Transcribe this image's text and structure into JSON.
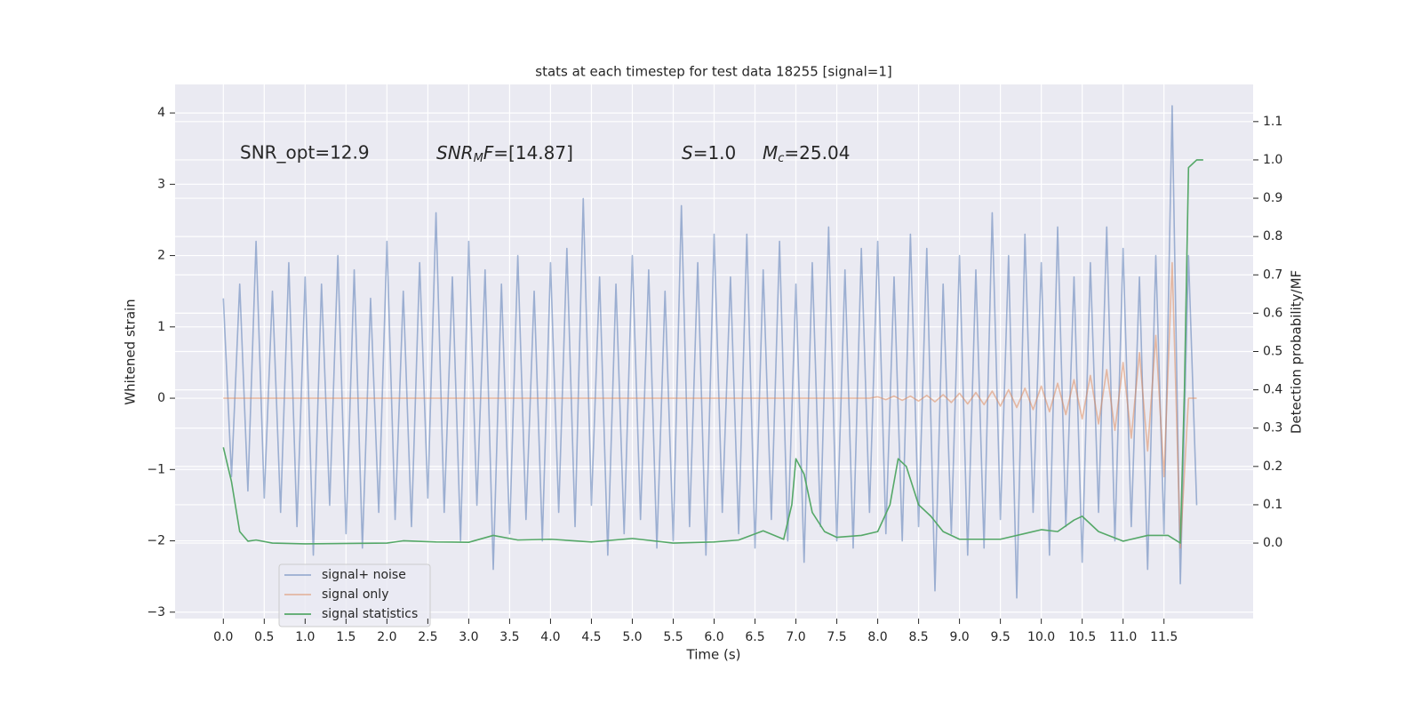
{
  "chart_data": {
    "type": "line",
    "title": "stats at each timestep for test data 18255 [signal=1]",
    "xlabel": "Time (s)",
    "ylabel": "Whitened strain",
    "y2label": "Detection probability/MF",
    "annotations": [
      [
        "SNR_opt=12.9"
      ],
      [
        "SNR",
        "M",
        "F",
        "=[14.87]"
      ],
      [
        "S",
        "=1.0"
      ],
      [
        "M",
        "c",
        "=25.04"
      ]
    ],
    "grid": true,
    "legend": "lower left",
    "xlim": [
      -0.59,
      12.59
    ],
    "ylim": [
      -3.09,
      4.4
    ],
    "y2lim": [
      -0.197,
      1.197
    ],
    "xticks": [
      {
        "value": 0,
        "label": "0.0"
      },
      0.5,
      {
        "value": 1,
        "label": "1.0"
      },
      1.5,
      {
        "value": 2,
        "label": "2.0"
      },
      2.5,
      {
        "value": 3,
        "label": "3.0"
      },
      3.5,
      {
        "value": 4,
        "label": "4.0"
      },
      4.5,
      {
        "value": 5,
        "label": "5.0"
      },
      5.5,
      {
        "value": 6,
        "label": "6.0"
      },
      6.5,
      {
        "value": 7,
        "label": "7.0"
      },
      7.5,
      {
        "value": 8,
        "label": "8.0"
      },
      8.5,
      {
        "value": 9,
        "label": "9.0"
      },
      9.5,
      {
        "value": 10,
        "label": "10.0"
      },
      10.5,
      {
        "value": 11,
        "label": "11.0"
      },
      11.5
    ],
    "yticks": [
      {
        "value": -3,
        "label": "−3"
      },
      {
        "value": -2,
        "label": "−2"
      },
      {
        "value": -1,
        "label": "−1"
      },
      0,
      1,
      2,
      3,
      4
    ],
    "y2ticks": [
      {
        "value": 0,
        "label": "0.0"
      },
      0.1,
      0.2,
      0.3,
      0.4,
      0.5,
      0.6,
      0.7,
      0.8,
      0.9,
      {
        "value": 1,
        "label": "1.0"
      },
      1.1
    ],
    "x": [
      0,
      0.1,
      0.2,
      0.3,
      0.4,
      0.5,
      0.6,
      0.7,
      0.8,
      0.9,
      1,
      1.1,
      1.2,
      1.3,
      1.4,
      1.5,
      1.6,
      1.7,
      1.8,
      1.9,
      2,
      2.1,
      2.2,
      2.3,
      2.4,
      2.5,
      2.6,
      2.7,
      2.8,
      2.9,
      3,
      3.1,
      3.2,
      3.3,
      3.4,
      3.5,
      3.6,
      3.7,
      3.8,
      3.9,
      4,
      4.1,
      4.2,
      4.3,
      4.4,
      4.5,
      4.6,
      4.7,
      4.8,
      4.9,
      5,
      5.1,
      5.2,
      5.3,
      5.4,
      5.5,
      5.6,
      5.7,
      5.8,
      5.9,
      6,
      6.1,
      6.2,
      6.3,
      6.4,
      6.5,
      6.6,
      6.7,
      6.8,
      6.9,
      7,
      7.1,
      7.2,
      7.3,
      7.4,
      7.5,
      7.6,
      7.7,
      7.8,
      7.9,
      8,
      8.1,
      8.2,
      8.3,
      8.4,
      8.5,
      8.6,
      8.7,
      8.8,
      8.9,
      9,
      9.1,
      9.2,
      9.3,
      9.4,
      9.5,
      9.6,
      9.7,
      9.8,
      9.9,
      10,
      10.1,
      10.2,
      10.3,
      10.4,
      10.5,
      10.6,
      10.7,
      10.8,
      10.9,
      11,
      11.1,
      11.2,
      11.3,
      11.4,
      11.5,
      11.6,
      11.7,
      11.8,
      11.9
    ],
    "series": [
      {
        "name": "signal+ noise",
        "color": "#4c72b0",
        "values": [
          1.4,
          -1.1,
          1.6,
          -1.3,
          2.2,
          -1.4,
          1.5,
          -1.6,
          1.9,
          -1.8,
          1.7,
          -2.2,
          1.6,
          -1.5,
          2.0,
          -1.9,
          1.8,
          -2.1,
          1.4,
          -1.6,
          2.2,
          -1.7,
          1.5,
          -1.8,
          1.9,
          -1.4,
          2.6,
          -1.6,
          1.7,
          -2.0,
          2.2,
          -1.5,
          1.8,
          -2.4,
          1.6,
          -1.9,
          2.0,
          -1.7,
          1.5,
          -2.0,
          1.9,
          -1.6,
          2.1,
          -1.8,
          2.8,
          -1.5,
          1.7,
          -2.2,
          1.6,
          -1.9,
          2.0,
          -1.7,
          1.8,
          -2.1,
          1.5,
          -2.0,
          2.7,
          -1.8,
          1.9,
          -2.2,
          2.3,
          -1.6,
          1.7,
          -1.9,
          2.3,
          -2.1,
          1.8,
          -1.7,
          2.2,
          -2.0,
          1.6,
          -2.3,
          1.9,
          -1.8,
          2.4,
          -2.0,
          1.8,
          -2.1,
          2.1,
          -1.6,
          2.2,
          -1.9,
          1.7,
          -2.0,
          2.3,
          -1.8,
          2.1,
          -2.7,
          1.6,
          -1.9,
          2.0,
          -2.2,
          1.8,
          -2.1,
          2.6,
          -1.7,
          2.0,
          -2.8,
          2.3,
          -1.6,
          1.9,
          -2.2,
          2.4,
          -1.8,
          1.7,
          -2.3,
          1.9,
          -1.6,
          2.4,
          -2.0,
          2.1,
          -1.8,
          1.7,
          -2.4,
          2.0,
          -1.9,
          4.1,
          -2.6,
          2.0,
          -1.5
        ]
      },
      {
        "name": "signal only",
        "color": "#dd8452",
        "values": [
          0,
          0,
          0,
          0,
          0,
          0,
          0,
          0,
          0,
          0,
          0,
          0,
          0,
          0,
          0,
          0,
          0,
          0,
          0,
          0,
          0,
          0,
          0,
          0,
          0,
          0,
          0,
          0,
          0,
          0,
          0,
          0,
          0,
          0,
          0,
          0,
          0,
          0,
          0,
          0,
          0,
          0,
          0,
          0,
          0,
          0,
          0,
          0,
          0,
          0,
          0,
          0,
          0,
          0,
          0,
          0,
          0,
          0,
          0,
          0,
          0,
          0,
          0,
          0,
          0,
          0,
          0,
          0,
          0,
          0,
          0,
          0,
          0,
          0,
          0,
          0,
          0,
          0,
          0,
          0,
          0.02,
          -0.02,
          0.03,
          -0.03,
          0.03,
          -0.04,
          0.04,
          -0.05,
          0.05,
          -0.06,
          0.07,
          -0.08,
          0.08,
          -0.09,
          0.1,
          -0.11,
          0.12,
          -0.13,
          0.14,
          -0.16,
          0.17,
          -0.19,
          0.21,
          -0.23,
          0.26,
          -0.29,
          0.32,
          -0.36,
          0.4,
          -0.45,
          0.5,
          -0.56,
          0.64,
          -0.74,
          0.88,
          -1.1,
          1.9,
          -2.1,
          0,
          0
        ]
      },
      {
        "name": "signal statistics",
        "color": "#55a868",
        "axis": "y2",
        "x": [
          0,
          0.1,
          0.2,
          0.3,
          0.4,
          0.6,
          1,
          2,
          2.2,
          2.6,
          3,
          3.3,
          3.6,
          4,
          4.5,
          5,
          5.5,
          6,
          6.3,
          6.6,
          6.85,
          6.95,
          7,
          7.1,
          7.2,
          7.35,
          7.5,
          7.8,
          8,
          8.15,
          8.25,
          8.35,
          8.5,
          8.65,
          8.8,
          9,
          9.5,
          9.8,
          10,
          10.2,
          10.4,
          10.5,
          10.7,
          11,
          11.3,
          11.55,
          11.7,
          11.75,
          11.8,
          11.85,
          11.9,
          11.98
        ],
        "values": [
          0.25,
          0.16,
          0.03,
          0.005,
          0.008,
          0,
          -0.002,
          0,
          0.006,
          0.003,
          0.002,
          0.02,
          0.008,
          0.01,
          0.003,
          0.012,
          0,
          0.003,
          0.008,
          0.032,
          0.01,
          0.1,
          0.22,
          0.18,
          0.08,
          0.03,
          0.015,
          0.02,
          0.03,
          0.1,
          0.22,
          0.2,
          0.1,
          0.07,
          0.03,
          0.01,
          0.01,
          0.025,
          0.035,
          0.03,
          0.06,
          0.07,
          0.03,
          0.005,
          0.02,
          0.02,
          0,
          0.4,
          0.98,
          0.99,
          1,
          1
        ]
      }
    ]
  }
}
